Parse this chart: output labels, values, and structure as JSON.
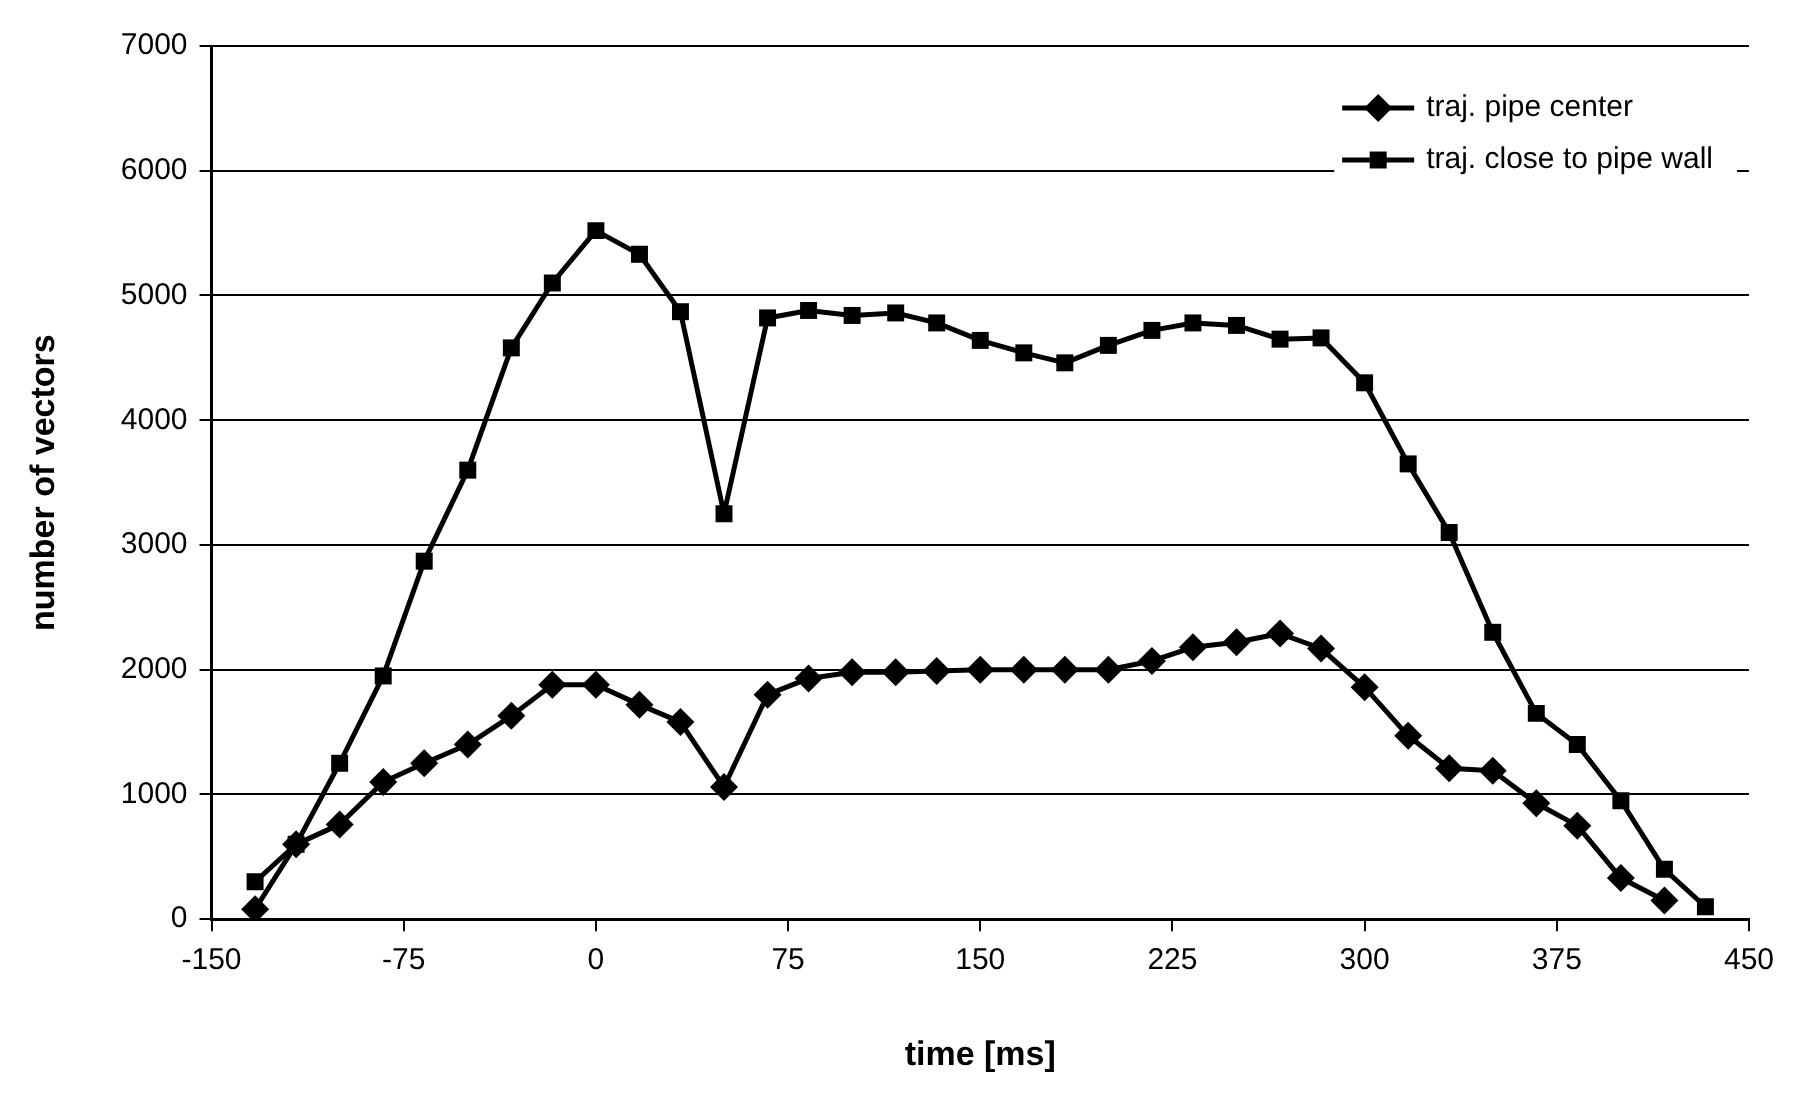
{
  "chart_data": {
    "type": "line",
    "xlabel": "time [ms]",
    "ylabel": "number of vectors",
    "xlim": [
      -150,
      450
    ],
    "xticks": [
      -150,
      -75,
      0,
      75,
      150,
      225,
      300,
      375,
      450
    ],
    "ylim": [
      0,
      7000
    ],
    "yticks": [
      0,
      1000,
      2000,
      3000,
      4000,
      5000,
      6000,
      7000
    ],
    "grid": "y",
    "legend": "top right",
    "line_style": "solid",
    "series": [
      {
        "name": "traj. pipe center",
        "color": "#000000",
        "marker": "diamond",
        "x": [
          -133,
          -117,
          -100,
          -83,
          -67,
          -50,
          -33,
          -17,
          0,
          17,
          33,
          50,
          67,
          83,
          100,
          117,
          133,
          150,
          167,
          183,
          200,
          217,
          233,
          250,
          267,
          283,
          300,
          317,
          333,
          350,
          367,
          383,
          400,
          417
        ],
        "values": [
          80,
          600,
          760,
          1100,
          1250,
          1400,
          1630,
          1880,
          1880,
          1720,
          1580,
          1060,
          1800,
          1930,
          1980,
          1980,
          1990,
          2000,
          2000,
          2000,
          2000,
          2070,
          2180,
          2220,
          2290,
          2170,
          1860,
          1470,
          1210,
          1190,
          930,
          750,
          330,
          150
        ]
      },
      {
        "name": "traj. close to pipe wall",
        "color": "#000000",
        "marker": "square",
        "x": [
          -133,
          -117,
          -100,
          -83,
          -67,
          -50,
          -33,
          -17,
          0,
          17,
          33,
          50,
          67,
          83,
          100,
          117,
          133,
          150,
          167,
          183,
          200,
          217,
          233,
          250,
          267,
          283,
          300,
          317,
          333,
          350,
          367,
          383,
          400,
          417,
          433
        ],
        "values": [
          300,
          600,
          1250,
          1950,
          2870,
          3600,
          4580,
          5100,
          5520,
          5330,
          4870,
          3250,
          4820,
          4880,
          4840,
          4860,
          4780,
          4640,
          4540,
          4460,
          4600,
          4720,
          4780,
          4760,
          4650,
          4660,
          4300,
          3650,
          3100,
          2300,
          1650,
          1400,
          950,
          400,
          100
        ]
      }
    ]
  }
}
